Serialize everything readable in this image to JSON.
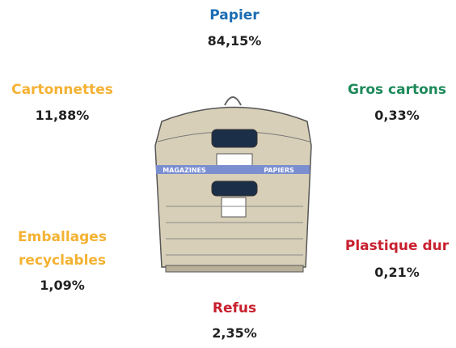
{
  "items": [
    {
      "label": "Papier",
      "value": "84,15%",
      "color": "#1b6db3"
    },
    {
      "label": "Cartonnettes",
      "value": "11,88%",
      "color": "#f4b233"
    },
    {
      "label": "Gros cartons",
      "value": "0,33%",
      "color": "#1e8a5b"
    },
    {
      "label": "Emballages recyclables",
      "value": "1,09%",
      "color": "#f4b233"
    },
    {
      "label": "Plastique dur",
      "value": "0,21%",
      "color": "#c8202f"
    },
    {
      "label": "Refus",
      "value": "2,35%",
      "color": "#c8202f"
    }
  ],
  "bin": {
    "left_label": "MAGAZINES",
    "right_label": "PAPIERS"
  }
}
